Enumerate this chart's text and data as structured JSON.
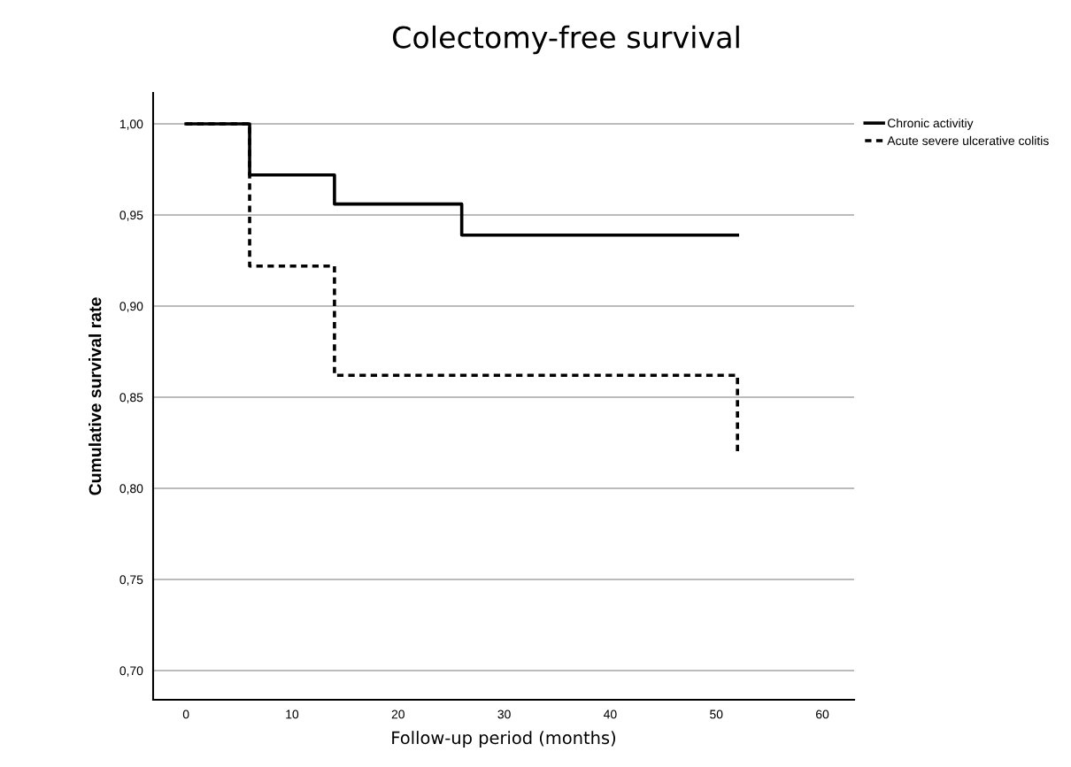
{
  "chart_data": {
    "type": "step",
    "title": "Colectomy-free survival",
    "xlabel": "Follow-up period (months)",
    "ylabel": "Cumulative survival rate",
    "series": [
      {
        "name": "Chronic activitiy",
        "color": "#000000",
        "line_style": "solid",
        "x": [
          0,
          6,
          14,
          26,
          52
        ],
        "values": [
          1.0,
          0.972,
          0.956,
          0.939,
          0.939
        ]
      },
      {
        "name": "Acute severe ulcerative colitis",
        "color": "#000000",
        "line_style": "dotted",
        "x": [
          0,
          6,
          14,
          52
        ],
        "values": [
          1.0,
          0.922,
          0.862,
          0.82
        ]
      }
    ],
    "xlim": [
      -3.1,
      63
    ],
    "xticks": [
      0,
      10,
      20,
      30,
      40,
      50,
      60
    ],
    "ylim": [
      0.684,
      1.017
    ],
    "yticks": [
      {
        "value": 0.7,
        "label": "0,70"
      },
      {
        "value": 0.75,
        "label": "0,75"
      },
      {
        "value": 0.8,
        "label": "0,80"
      },
      {
        "value": 0.85,
        "label": "0,85"
      },
      {
        "value": 0.9,
        "label": "0,90"
      },
      {
        "value": 0.95,
        "label": "0,95"
      },
      {
        "value": 1.0,
        "label": "1,00"
      }
    ],
    "grid": "y",
    "legend": "top right",
    "marker": "none"
  }
}
